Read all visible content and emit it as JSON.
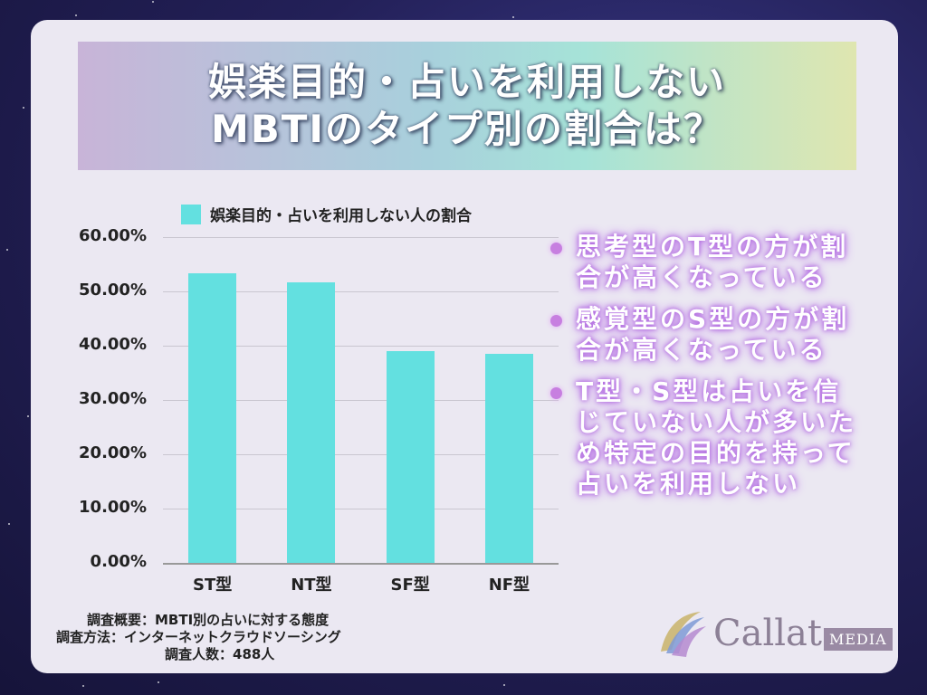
{
  "title": {
    "line1": "娯楽目的・占いを利用しない",
    "line2": "MBTIのタイプ別の割合は？"
  },
  "chart_data": {
    "type": "bar",
    "categories": [
      "ST型",
      "NT型",
      "SF型",
      "NF型"
    ],
    "series": [
      {
        "name": "娯楽目的・占いを利用しない人の割合",
        "values": [
          53.3,
          51.7,
          39.0,
          38.5
        ]
      }
    ],
    "ylim": [
      0,
      60
    ],
    "y_ticks": [
      "0.00%",
      "10.00%",
      "20.00%",
      "30.00%",
      "40.00%",
      "50.00%",
      "60.00%"
    ],
    "legend": "top",
    "grid": true,
    "color": "#63e0e0"
  },
  "notes": [
    "思考型のT型の方が割合が高くなっている",
    "感覚型のS型の方が割合が高くなっている",
    "T型・S型は占いを信じていない人が多いため特定の目的を持って占いを利用しない"
  ],
  "footer": {
    "summary": "調査概要：MBTI別の占いに対する態度",
    "method": "調査方法：インターネットクラウドソーシング",
    "count": "調査人数：488人"
  },
  "logo": {
    "name": "Callat",
    "badge": "MEDIA"
  },
  "colors": {
    "bar": "#63e0e0",
    "accent": "#c77fe0",
    "card": "#ebe8f2"
  }
}
